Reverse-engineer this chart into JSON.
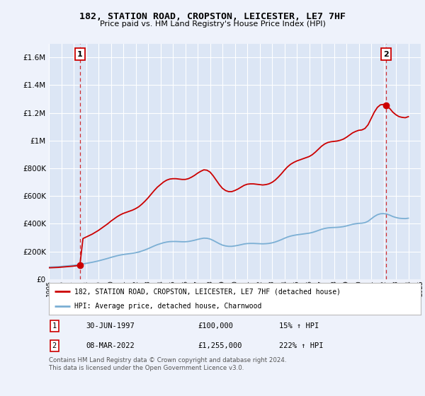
{
  "title": "182, STATION ROAD, CROPSTON, LEICESTER, LE7 7HF",
  "subtitle": "Price paid vs. HM Land Registry's House Price Index (HPI)",
  "bg_color": "#eef2fb",
  "plot_bg_color": "#dce6f5",
  "grid_color": "#ffffff",
  "hpi_color": "#7bafd4",
  "price_color": "#cc0000",
  "vline_color": "#cc0000",
  "ylim": [
    0,
    1700000
  ],
  "yticks": [
    0,
    200000,
    400000,
    600000,
    800000,
    1000000,
    1200000,
    1400000,
    1600000
  ],
  "ytick_labels": [
    "£0",
    "£200K",
    "£400K",
    "£600K",
    "£800K",
    "£1M",
    "£1.2M",
    "£1.4M",
    "£1.6M"
  ],
  "xmin_year": 1995,
  "xmax_year": 2025,
  "xticks": [
    1995,
    1996,
    1997,
    1998,
    1999,
    2000,
    2001,
    2002,
    2003,
    2004,
    2005,
    2006,
    2007,
    2008,
    2009,
    2010,
    2011,
    2012,
    2013,
    2014,
    2015,
    2016,
    2017,
    2018,
    2019,
    2020,
    2021,
    2022,
    2023,
    2024,
    2025
  ],
  "sale1_x": 1997.5,
  "sale1_y": 100000,
  "sale1_label": "1",
  "sale1_date": "30-JUN-1997",
  "sale1_price": "£100,000",
  "sale1_hpi": "15% ↑ HPI",
  "sale2_x": 2022.18,
  "sale2_y": 1255000,
  "sale2_label": "2",
  "sale2_date": "08-MAR-2022",
  "sale2_price": "£1,255,000",
  "sale2_hpi": "222% ↑ HPI",
  "legend_line1": "182, STATION ROAD, CROPSTON, LEICESTER, LE7 7HF (detached house)",
  "legend_line2": "HPI: Average price, detached house, Charnwood",
  "footer": "Contains HM Land Registry data © Crown copyright and database right 2024.\nThis data is licensed under the Open Government Licence v3.0.",
  "hpi_data_x": [
    1995,
    1995.25,
    1995.5,
    1995.75,
    1996,
    1996.25,
    1996.5,
    1996.75,
    1997,
    1997.25,
    1997.5,
    1997.75,
    1998,
    1998.25,
    1998.5,
    1998.75,
    1999,
    1999.25,
    1999.5,
    1999.75,
    2000,
    2000.25,
    2000.5,
    2000.75,
    2001,
    2001.25,
    2001.5,
    2001.75,
    2002,
    2002.25,
    2002.5,
    2002.75,
    2003,
    2003.25,
    2003.5,
    2003.75,
    2004,
    2004.25,
    2004.5,
    2004.75,
    2005,
    2005.25,
    2005.5,
    2005.75,
    2006,
    2006.25,
    2006.5,
    2006.75,
    2007,
    2007.25,
    2007.5,
    2007.75,
    2008,
    2008.25,
    2008.5,
    2008.75,
    2009,
    2009.25,
    2009.5,
    2009.75,
    2010,
    2010.25,
    2010.5,
    2010.75,
    2011,
    2011.25,
    2011.5,
    2011.75,
    2012,
    2012.25,
    2012.5,
    2012.75,
    2013,
    2013.25,
    2013.5,
    2013.75,
    2014,
    2014.25,
    2014.5,
    2014.75,
    2015,
    2015.25,
    2015.5,
    2015.75,
    2016,
    2016.25,
    2016.5,
    2016.75,
    2017,
    2017.25,
    2017.5,
    2017.75,
    2018,
    2018.25,
    2018.5,
    2018.75,
    2019,
    2019.25,
    2019.5,
    2019.75,
    2020,
    2020.25,
    2020.5,
    2020.75,
    2021,
    2021.25,
    2021.5,
    2021.75,
    2022,
    2022.25,
    2022.5,
    2022.75,
    2023,
    2023.25,
    2023.5,
    2023.75,
    2024
  ],
  "hpi_data_y": [
    87000,
    88000,
    89000,
    90000,
    92000,
    94000,
    96000,
    98000,
    100000,
    103000,
    106000,
    110000,
    114000,
    118000,
    122000,
    127000,
    132000,
    138000,
    144000,
    150000,
    157000,
    163000,
    169000,
    174000,
    178000,
    181000,
    184000,
    187000,
    191000,
    196000,
    203000,
    211000,
    220000,
    230000,
    240000,
    249000,
    256000,
    263000,
    268000,
    271000,
    272000,
    272000,
    271000,
    270000,
    270000,
    272000,
    276000,
    281000,
    287000,
    292000,
    296000,
    295000,
    290000,
    280000,
    268000,
    256000,
    246000,
    240000,
    237000,
    237000,
    240000,
    244000,
    249000,
    254000,
    257000,
    258000,
    258000,
    257000,
    256000,
    255000,
    256000,
    258000,
    262000,
    268000,
    276000,
    285000,
    295000,
    304000,
    311000,
    316000,
    320000,
    323000,
    326000,
    329000,
    332000,
    337000,
    344000,
    352000,
    360000,
    366000,
    370000,
    372000,
    373000,
    374000,
    376000,
    379000,
    384000,
    390000,
    396000,
    400000,
    403000,
    404000,
    408000,
    418000,
    435000,
    452000,
    465000,
    472000,
    473000,
    470000,
    462000,
    452000,
    445000,
    440000,
    438000,
    437000,
    440000
  ]
}
